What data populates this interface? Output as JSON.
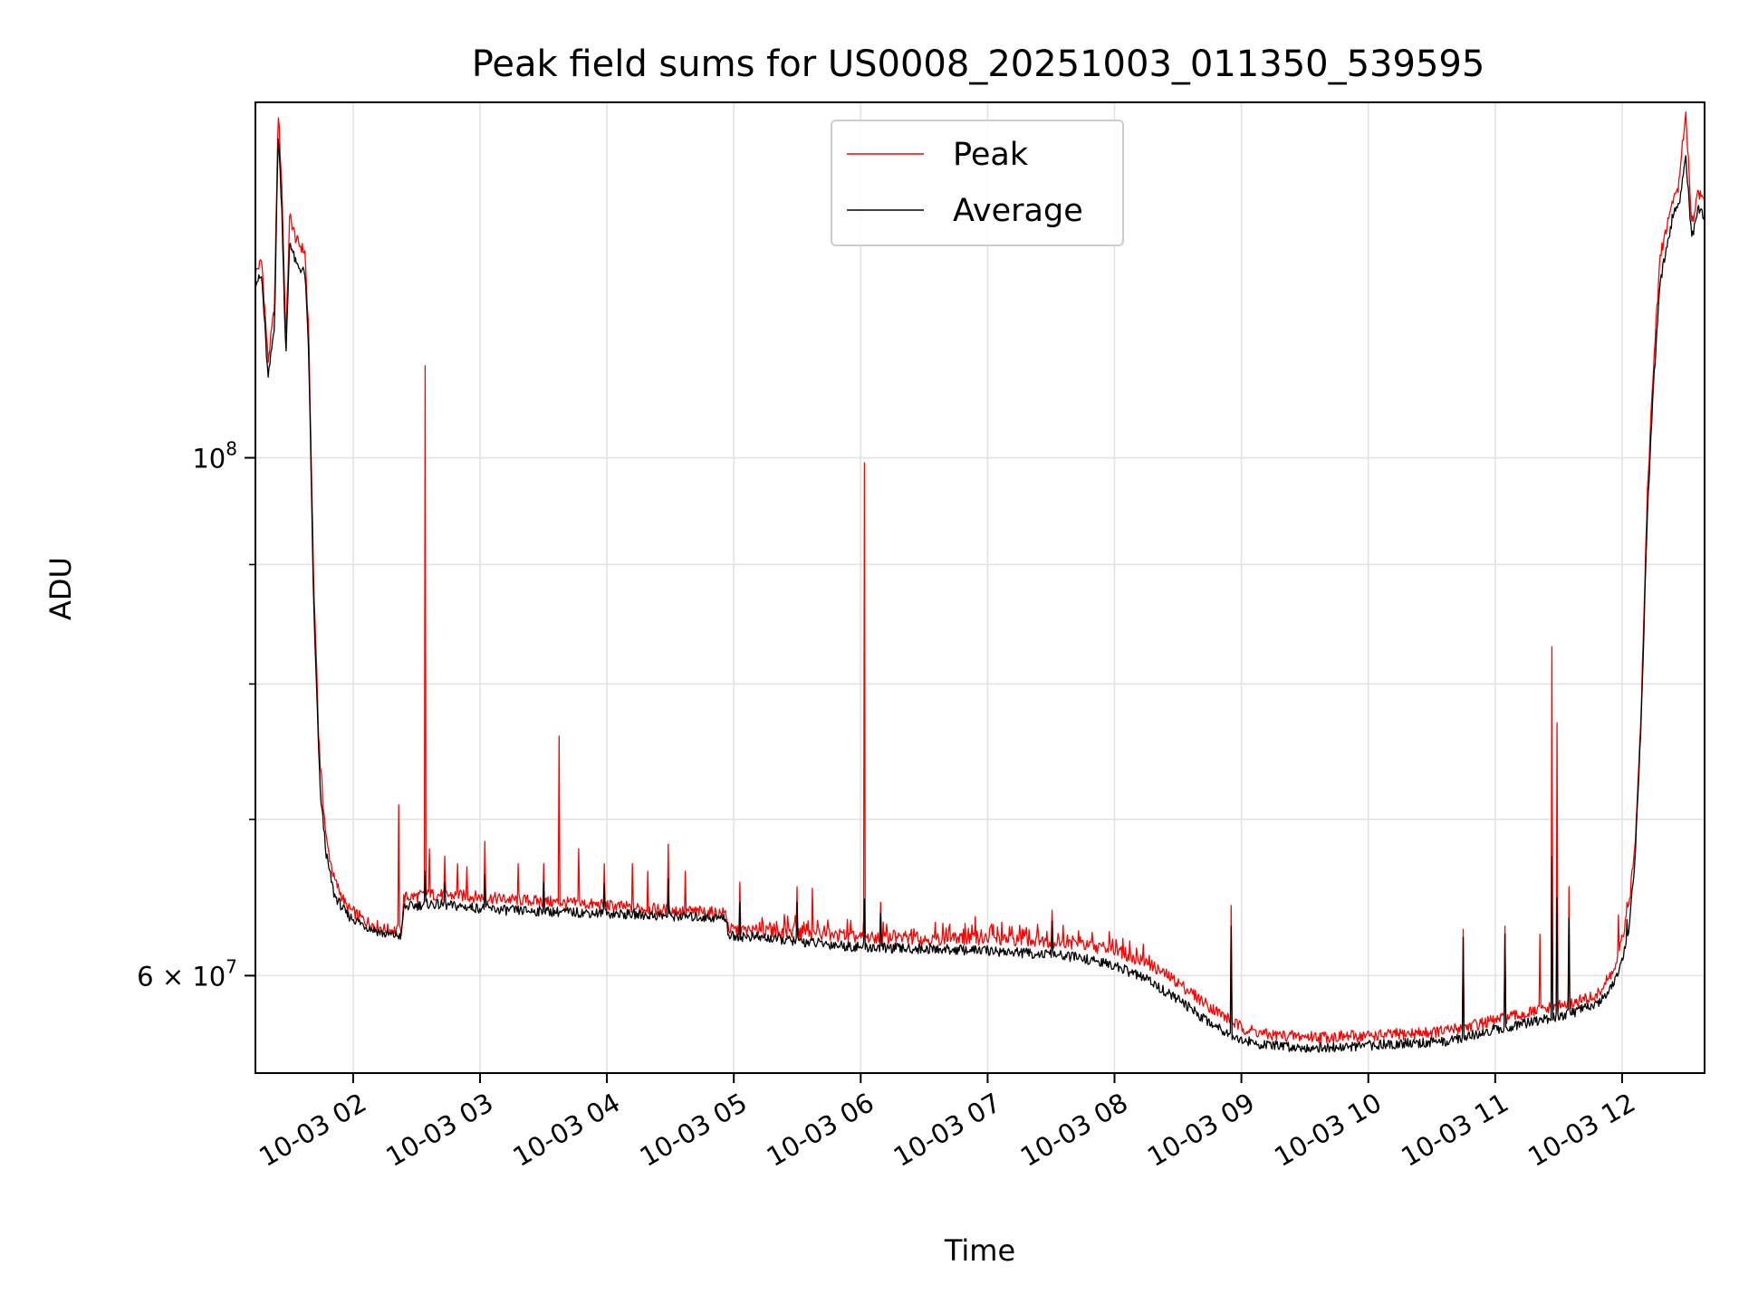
{
  "chart_data": {
    "type": "line",
    "title": "Peak field sums for US0008_20251003_011350_539595",
    "xlabel": "Time",
    "ylabel": "ADU",
    "yscale": "log",
    "xlim_hours": [
      1.23,
      12.65
    ],
    "ylim": [
      54500000,
      142000000
    ],
    "grid": true,
    "legend_position": "top-center",
    "x_ticks": [
      {
        "value": 2,
        "label": "10-03 02"
      },
      {
        "value": 3,
        "label": "10-03 03"
      },
      {
        "value": 4,
        "label": "10-03 04"
      },
      {
        "value": 5,
        "label": "10-03 05"
      },
      {
        "value": 6,
        "label": "10-03 06"
      },
      {
        "value": 7,
        "label": "10-03 07"
      },
      {
        "value": 8,
        "label": "10-03 08"
      },
      {
        "value": 9,
        "label": "10-03 09"
      },
      {
        "value": 10,
        "label": "10-03 10"
      },
      {
        "value": 11,
        "label": "10-03 11"
      },
      {
        "value": 12,
        "label": "10-03 12"
      }
    ],
    "y_major_ticks": [
      {
        "value": 100000000,
        "base": "10",
        "exp": "8"
      },
      {
        "value": 60000000,
        "base": "6 × 10",
        "exp": "7"
      }
    ],
    "y_minor_ticks": [
      60000000,
      70000000,
      80000000,
      90000000,
      100000000
    ],
    "series": [
      {
        "name": "Peak",
        "color": "#ff0000",
        "points": [
          [
            1.23,
            120000000
          ],
          [
            1.28,
            121500000
          ],
          [
            1.33,
            110000000
          ],
          [
            1.38,
            116000000
          ],
          [
            1.41,
            141000000
          ],
          [
            1.44,
            130000000
          ],
          [
            1.47,
            112000000
          ],
          [
            1.5,
            127000000
          ],
          [
            1.55,
            124000000
          ],
          [
            1.62,
            122500000
          ],
          [
            1.65,
            113000000
          ],
          [
            1.69,
            88000000
          ],
          [
            1.74,
            74000000
          ],
          [
            1.79,
            68500000
          ],
          [
            1.85,
            66000000
          ],
          [
            1.95,
            64200000
          ],
          [
            2.1,
            63300000
          ],
          [
            2.25,
            62800000
          ],
          [
            2.38,
            62700000
          ],
          [
            2.4,
            64800000
          ],
          [
            2.6,
            65000000
          ],
          [
            2.9,
            64900000
          ],
          [
            3.2,
            64700000
          ],
          [
            3.6,
            64500000
          ],
          [
            4.0,
            64300000
          ],
          [
            4.3,
            64100000
          ],
          [
            4.94,
            63800000
          ],
          [
            4.96,
            62800000
          ],
          [
            5.2,
            62700000
          ],
          [
            5.6,
            62500000
          ],
          [
            6.0,
            62300000
          ],
          [
            6.5,
            62200000
          ],
          [
            7.0,
            62200000
          ],
          [
            7.4,
            62100000
          ],
          [
            7.7,
            61900000
          ],
          [
            8.0,
            61500000
          ],
          [
            8.25,
            60800000
          ],
          [
            8.5,
            59600000
          ],
          [
            8.75,
            58200000
          ],
          [
            9.0,
            57000000
          ],
          [
            9.2,
            56600000
          ],
          [
            9.5,
            56500000
          ],
          [
            9.8,
            56500000
          ],
          [
            10.2,
            56600000
          ],
          [
            10.6,
            56800000
          ],
          [
            11.0,
            57400000
          ],
          [
            11.5,
            58200000
          ],
          [
            11.8,
            58800000
          ],
          [
            11.95,
            60500000
          ],
          [
            12.05,
            64000000
          ],
          [
            12.1,
            68000000
          ],
          [
            12.15,
            78000000
          ],
          [
            12.2,
            97000000
          ],
          [
            12.25,
            110000000
          ],
          [
            12.3,
            122000000
          ],
          [
            12.4,
            129000000
          ],
          [
            12.45,
            131000000
          ],
          [
            12.5,
            141000000
          ],
          [
            12.55,
            126000000
          ],
          [
            12.6,
            130000000
          ],
          [
            12.65,
            129000000
          ]
        ],
        "spikes": [
          [
            1.73,
            76000000
          ],
          [
            1.76,
            71000000
          ],
          [
            2.36,
            71000000
          ],
          [
            2.57,
            109500000
          ],
          [
            2.6,
            68000000
          ],
          [
            2.72,
            67500000
          ],
          [
            2.82,
            67000000
          ],
          [
            2.9,
            66800000
          ],
          [
            3.04,
            68500000
          ],
          [
            3.3,
            67000000
          ],
          [
            3.5,
            67000000
          ],
          [
            3.62,
            76000000
          ],
          [
            3.78,
            68000000
          ],
          [
            3.98,
            67000000
          ],
          [
            4.2,
            67000000
          ],
          [
            4.32,
            66500000
          ],
          [
            4.48,
            68300000
          ],
          [
            4.62,
            66500000
          ],
          [
            5.05,
            65800000
          ],
          [
            5.5,
            65500000
          ],
          [
            5.62,
            65400000
          ],
          [
            6.03,
            99500000
          ],
          [
            6.16,
            64500000
          ],
          [
            6.9,
            63600000
          ],
          [
            7.51,
            64000000
          ],
          [
            8.92,
            64300000
          ],
          [
            10.75,
            62800000
          ],
          [
            11.08,
            63000000
          ],
          [
            11.35,
            62500000
          ],
          [
            11.45,
            83000000
          ],
          [
            11.49,
            77000000
          ],
          [
            11.58,
            65500000
          ],
          [
            11.97,
            63700000
          ],
          [
            12.04,
            64500000
          ]
        ]
      },
      {
        "name": "Average",
        "color": "#000000",
        "points": [
          [
            1.23,
            119000000
          ],
          [
            1.28,
            119500000
          ],
          [
            1.33,
            108000000
          ],
          [
            1.38,
            114000000
          ],
          [
            1.41,
            138000000
          ],
          [
            1.44,
            127000000
          ],
          [
            1.47,
            110000000
          ],
          [
            1.5,
            124000000
          ],
          [
            1.55,
            121000000
          ],
          [
            1.62,
            120000000
          ],
          [
            1.65,
            111000000
          ],
          [
            1.69,
            86000000
          ],
          [
            1.74,
            72000000
          ],
          [
            1.79,
            67500000
          ],
          [
            1.85,
            65000000
          ],
          [
            1.95,
            63700000
          ],
          [
            2.1,
            63000000
          ],
          [
            2.25,
            62500000
          ],
          [
            2.38,
            62400000
          ],
          [
            2.4,
            64200000
          ],
          [
            2.6,
            64400000
          ],
          [
            2.9,
            64200000
          ],
          [
            3.2,
            64000000
          ],
          [
            3.6,
            63900000
          ],
          [
            4.0,
            63800000
          ],
          [
            4.3,
            63700000
          ],
          [
            4.94,
            63500000
          ],
          [
            4.96,
            62400000
          ],
          [
            5.2,
            62300000
          ],
          [
            5.6,
            62000000
          ],
          [
            6.0,
            61700000
          ],
          [
            6.5,
            61600000
          ],
          [
            7.0,
            61500000
          ],
          [
            7.4,
            61300000
          ],
          [
            7.7,
            61100000
          ],
          [
            8.0,
            60600000
          ],
          [
            8.25,
            59800000
          ],
          [
            8.5,
            58600000
          ],
          [
            8.75,
            57300000
          ],
          [
            9.0,
            56300000
          ],
          [
            9.2,
            56000000
          ],
          [
            9.5,
            55900000
          ],
          [
            9.8,
            55900000
          ],
          [
            10.2,
            56100000
          ],
          [
            10.6,
            56200000
          ],
          [
            11.0,
            56900000
          ],
          [
            11.5,
            57600000
          ],
          [
            11.8,
            58300000
          ],
          [
            11.95,
            59700000
          ],
          [
            12.05,
            62500000
          ],
          [
            12.1,
            67000000
          ],
          [
            12.15,
            77000000
          ],
          [
            12.2,
            95000000
          ],
          [
            12.25,
            108000000
          ],
          [
            12.3,
            119000000
          ],
          [
            12.4,
            127000000
          ],
          [
            12.45,
            128500000
          ],
          [
            12.5,
            135000000
          ],
          [
            12.55,
            124000000
          ],
          [
            12.6,
            128000000
          ],
          [
            12.65,
            127000000
          ]
        ],
        "spikes": [
          [
            2.57,
            66500000
          ],
          [
            2.72,
            65800000
          ],
          [
            3.04,
            66300000
          ],
          [
            3.5,
            65800000
          ],
          [
            3.98,
            65700000
          ],
          [
            4.48,
            66000000
          ],
          [
            5.05,
            64500000
          ],
          [
            5.5,
            64500000
          ],
          [
            6.03,
            64700000
          ],
          [
            6.16,
            63800000
          ],
          [
            7.51,
            63300000
          ],
          [
            8.92,
            63000000
          ],
          [
            10.75,
            62300000
          ],
          [
            11.08,
            62500000
          ],
          [
            11.45,
            67500000
          ],
          [
            11.49,
            64800000
          ],
          [
            11.58,
            63500000
          ],
          [
            12.04,
            63400000
          ]
        ]
      }
    ]
  }
}
